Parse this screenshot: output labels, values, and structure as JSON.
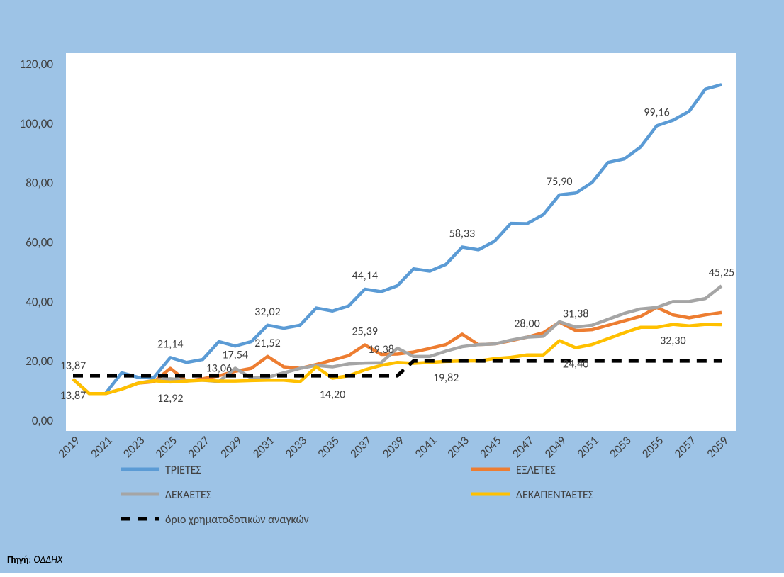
{
  "chart_data": {
    "type": "line",
    "categories": [
      "2019",
      null,
      "2021",
      null,
      "2023",
      null,
      "2025",
      null,
      "2027",
      null,
      "2029",
      null,
      "2031",
      null,
      "2033",
      null,
      "2035",
      null,
      "2037",
      null,
      "2039",
      null,
      "2041",
      null,
      "2043",
      null,
      "2045",
      null,
      "2047",
      null,
      "2049",
      null,
      "2051",
      null,
      "2053",
      null,
      "2055",
      null,
      "2057",
      null,
      "2059"
    ],
    "series": [
      {
        "name": "ΤΡΙΕΤΕΣ",
        "color": "#5B9BD5",
        "values": [
          13.87,
          9,
          9,
          16,
          14.5,
          14.5,
          21.14,
          19.5,
          20.5,
          26.5,
          25,
          26.5,
          32.02,
          31,
          32,
          37.8,
          36.8,
          38.5,
          44.14,
          43.3,
          45.3,
          51,
          50.2,
          52.5,
          58.33,
          57.4,
          60.3,
          66.3,
          66.2,
          69.2,
          75.9,
          76.5,
          80,
          86.8,
          88,
          92,
          99.16,
          101,
          104,
          111.5,
          113
        ],
        "value_labels": [
          "13,87",
          null,
          null,
          null,
          null,
          null,
          "21,14",
          null,
          null,
          null,
          null,
          null,
          "32,02",
          null,
          null,
          null,
          null,
          null,
          "44,14",
          null,
          null,
          null,
          null,
          null,
          "58,33",
          null,
          null,
          null,
          null,
          null,
          "75,90",
          null,
          null,
          null,
          null,
          null,
          "99,16",
          null,
          null,
          null,
          null
        ]
      },
      {
        "name": "ΕΞΑΕΤΕΣ",
        "color": "#ED7D31",
        "values": [
          13.87,
          9,
          9,
          10.5,
          12.5,
          13,
          17.5,
          13.2,
          14,
          15,
          16.5,
          17.5,
          21.52,
          18,
          17.5,
          18.8,
          20.3,
          21.8,
          25.39,
          22.2,
          22.3,
          23,
          24.2,
          25.5,
          29,
          25.5,
          25.7,
          26.8,
          28,
          29.5,
          33,
          30.2,
          30.5,
          32,
          33.5,
          35,
          38,
          35.5,
          34.5,
          35.5,
          36.3
        ],
        "value_labels": [
          "13,87",
          null,
          null,
          null,
          null,
          null,
          null,
          null,
          null,
          null,
          null,
          null,
          "21,52",
          null,
          null,
          null,
          null,
          null,
          "25,39",
          null,
          null,
          null,
          null,
          null,
          null,
          null,
          null,
          null,
          "28,00",
          null,
          null,
          null,
          null,
          null,
          null,
          null,
          null,
          null,
          null,
          null,
          null
        ]
      },
      {
        "name": "ΔΕΚΑΕΤΕΣ",
        "color": "#A5A5A5",
        "values": [
          13.87,
          9,
          9,
          10.5,
          12.5,
          13.5,
          14,
          13.5,
          13.5,
          13.06,
          17.54,
          14.2,
          14.5,
          16,
          17.5,
          18.5,
          18,
          19,
          19.3,
          19.38,
          24.3,
          21.5,
          21.5,
          23.3,
          24.8,
          25.5,
          25.7,
          27,
          28,
          28.3,
          33.2,
          31.38,
          32,
          34,
          36,
          37.5,
          38,
          40,
          40,
          41,
          45.25
        ],
        "value_labels": [
          null,
          null,
          null,
          null,
          null,
          null,
          null,
          null,
          null,
          "13,06",
          "17,54",
          null,
          null,
          null,
          null,
          null,
          null,
          null,
          null,
          "19,38",
          null,
          null,
          null,
          null,
          null,
          null,
          null,
          null,
          null,
          null,
          null,
          "31,38",
          null,
          null,
          null,
          null,
          null,
          null,
          null,
          null,
          "45,25"
        ]
      },
      {
        "name": "ΔΕΚΑΠΕΝΤΑΕΤΕΣ",
        "color": "#FFC000",
        "values": [
          13.87,
          9,
          9,
          10.5,
          12.5,
          13.3,
          12.92,
          13.2,
          13.5,
          13.2,
          13.2,
          13.4,
          13.5,
          13.5,
          13,
          18,
          14.2,
          15,
          17,
          18.5,
          19.5,
          19.2,
          19.5,
          19.82,
          20,
          20,
          20.8,
          21.2,
          22,
          22,
          26.8,
          24.4,
          25.5,
          27.5,
          29.5,
          31.3,
          31.3,
          32.3,
          31.8,
          32.3,
          32.2
        ],
        "value_labels": [
          null,
          null,
          null,
          null,
          null,
          null,
          "12,92",
          null,
          null,
          null,
          null,
          null,
          null,
          null,
          null,
          null,
          "14,20",
          null,
          null,
          null,
          null,
          null,
          null,
          "19,82",
          null,
          null,
          null,
          null,
          null,
          null,
          null,
          "24,40",
          null,
          null,
          null,
          null,
          null,
          "32,30",
          null,
          null,
          null
        ]
      },
      {
        "name": "όριο χρηματοδοτικών αναγκών",
        "color": "#000000",
        "dash": true,
        "values": [
          15,
          15,
          15,
          15,
          15,
          15,
          15,
          15,
          15,
          15,
          15,
          15,
          15,
          15,
          15,
          15,
          15,
          15,
          15,
          15,
          15,
          20,
          20,
          20,
          20,
          20,
          20,
          20,
          20,
          20,
          20,
          20,
          20,
          20,
          20,
          20,
          20,
          20,
          20,
          20,
          20
        ]
      }
    ],
    "ylim": [
      0,
      120
    ],
    "yticks": [
      {
        "value": 0,
        "label": "0,00"
      },
      {
        "value": 20,
        "label": "20,00"
      },
      {
        "value": 40,
        "label": "40,00"
      },
      {
        "value": 60,
        "label": "60,00"
      },
      {
        "value": 80,
        "label": "80,00"
      },
      {
        "value": 100,
        "label": "100,00"
      },
      {
        "value": 120,
        "label": "120,00"
      }
    ],
    "source_label": "Πηγή",
    "source_separator": ": ",
    "source": "ΟΔΔΗΧ"
  }
}
